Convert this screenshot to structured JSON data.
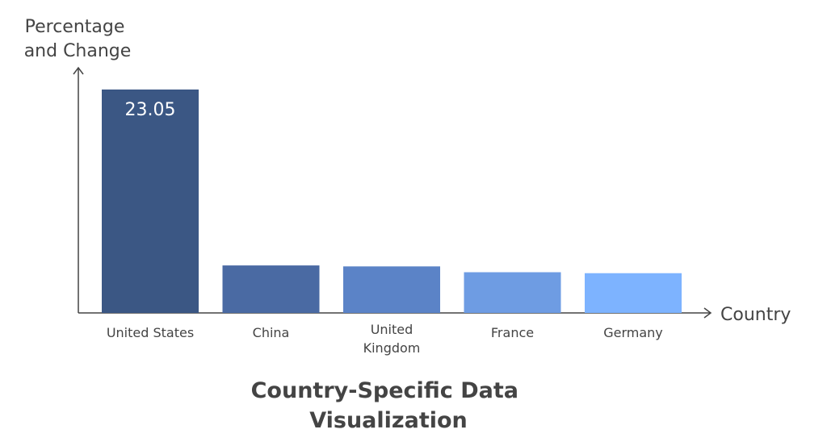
{
  "chart_data": {
    "type": "bar",
    "title_lines": [
      "Country-Specific Data",
      "Visualization"
    ],
    "ylabel_lines": [
      "Percentage",
      "and Change"
    ],
    "xlabel": "Country",
    "categories": [
      [
        "United States"
      ],
      [
        "China"
      ],
      [
        "United",
        "Kingdom"
      ],
      [
        "France"
      ],
      [
        "Germany"
      ]
    ],
    "values": [
      23.05,
      4.9,
      4.8,
      4.2,
      4.1
    ],
    "data_labels": [
      "23.05",
      "",
      "",
      "",
      ""
    ],
    "ylim": [
      0,
      25
    ],
    "colors": [
      "#3b5784",
      "#4a6aa3",
      "#5b83c7",
      "#6e9ce3",
      "#7db3ff"
    ],
    "grid": false,
    "legend": "none"
  }
}
